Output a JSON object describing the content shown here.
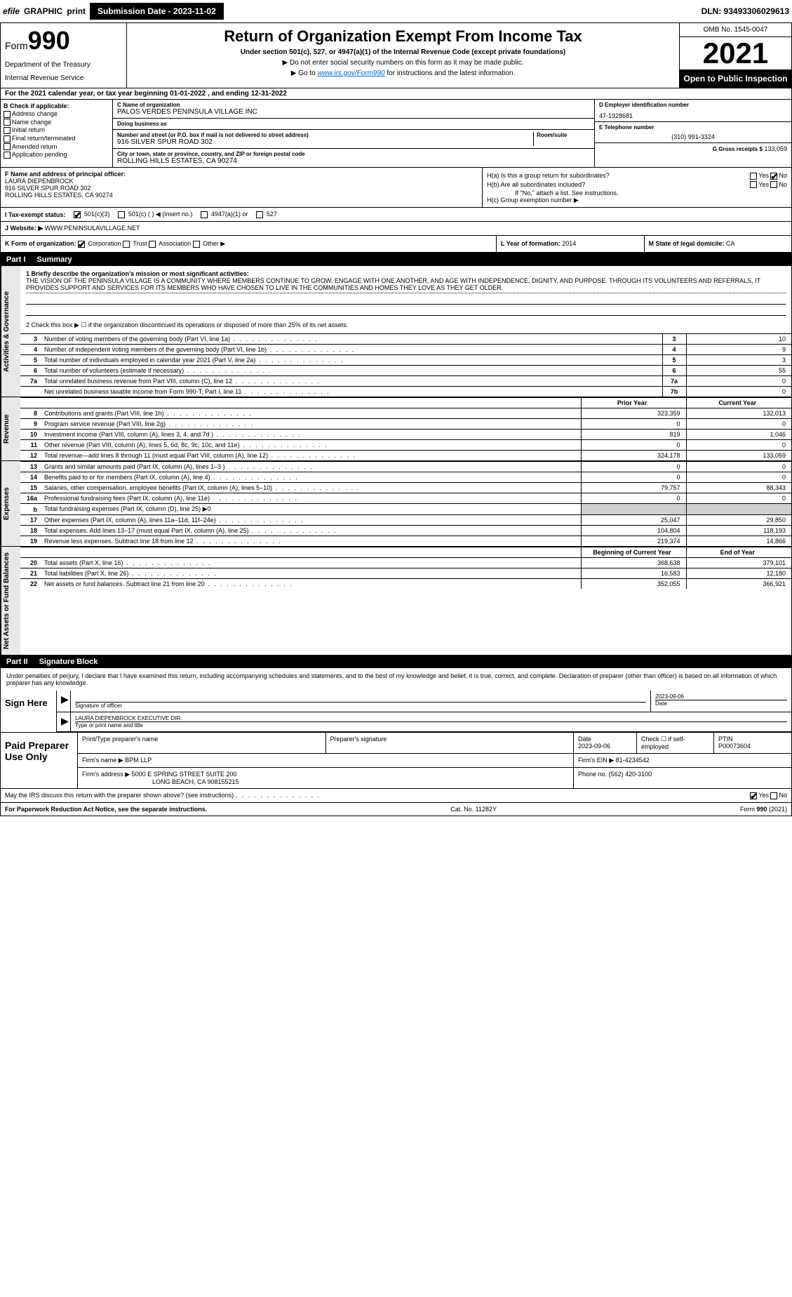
{
  "topbar": {
    "efile": "efile",
    "graphic": "GRAPHIC",
    "print": "print",
    "submission_label": "Submission Date - 2023-11-02",
    "dln": "DLN: 93493306029613"
  },
  "header": {
    "form_prefix": "Form",
    "form_number": "990",
    "dept": "Department of the Treasury",
    "irs": "Internal Revenue Service",
    "title": "Return of Organization Exempt From Income Tax",
    "subtitle": "Under section 501(c), 527, or 4947(a)(1) of the Internal Revenue Code (except private foundations)",
    "note1": "▶ Do not enter social security numbers on this form as it may be made public.",
    "note2_pre": "▶ Go to ",
    "note2_link": "www.irs.gov/Form990",
    "note2_post": " for instructions and the latest information.",
    "omb": "OMB No. 1545-0047",
    "year": "2021",
    "open_public": "Open to Public Inspection"
  },
  "period": "For the 2021 calendar year, or tax year beginning 01-01-2022    , and ending 12-31-2022",
  "box_b": {
    "title": "B Check if applicable:",
    "addr": "Address change",
    "name": "Name change",
    "initial": "Initial return",
    "final": "Final return/terminated",
    "amended": "Amended return",
    "app": "Application pending"
  },
  "box_c": {
    "name_label": "C Name of organization",
    "name": "PALOS VERDES PENINSULA VILLAGE INC",
    "dba_label": "Doing business as",
    "dba": "",
    "street_label": "Number and street (or P.O. box if mail is not delivered to street address)",
    "room_label": "Room/suite",
    "street": "916 SILVER SPUR ROAD 302",
    "city_label": "City or town, state or province, country, and ZIP or foreign postal code",
    "city": "ROLLING HILLS ESTATES, CA  90274"
  },
  "box_d": {
    "label": "D Employer identification number",
    "val": "47-1928681"
  },
  "box_e": {
    "label": "E Telephone number",
    "val": "(310) 991-3324"
  },
  "box_g": {
    "label": "G Gross receipts $",
    "val": "133,059"
  },
  "box_f": {
    "label": "F  Name and address of principal officer:",
    "name": "LAURA DIEPENBROCK",
    "street": "916 SILVER SPUR ROAD 302",
    "city": "ROLLING HILLS ESTATES, CA  90274"
  },
  "box_h": {
    "ha": "H(a)  Is this a group return for subordinates?",
    "hb": "H(b)  Are all subordinates included?",
    "hb_note": "If \"No,\" attach a list. See instructions.",
    "hc": "H(c)  Group exemption number ▶",
    "yes": "Yes",
    "no": "No"
  },
  "box_i": {
    "label": "I   Tax-exempt status:",
    "o1": "501(c)(3)",
    "o2": "501(c) (   ) ◀ (insert no.)",
    "o3": "4947(a)(1) or",
    "o4": "527"
  },
  "box_j": {
    "label": "J   Website: ▶",
    "val": "WWW.PENINSULAVILLAGE.NET"
  },
  "box_k": {
    "label": "K Form of organization:",
    "corp": "Corporation",
    "trust": "Trust",
    "assoc": "Association",
    "other": "Other ▶"
  },
  "box_l": {
    "label": "L Year of formation:",
    "val": "2014"
  },
  "box_m": {
    "label": "M State of legal domicile:",
    "val": "CA"
  },
  "part1": {
    "label": "Part I",
    "title": "Summary"
  },
  "summary": {
    "q1_label": "1  Briefly describe the organization's mission or most significant activities:",
    "q1_text": "THE VISION OF THE PENINSULA VILLAGE IS A COMMUNITY WHERE MEMBERS CONTINUE TO GROW, ENGAGE WITH ONE ANOTHER, AND AGE WITH INDEPENDENCE, DIGNITY, AND PURPOSE. THROUGH ITS VOLUNTEERS AND REFERRALS, IT PROVIDES SUPPORT AND SERVICES FOR ITS MEMBERS WHO HAVE CHOSEN TO LIVE IN THE COMMUNITIES AND HOMES THEY LOVE AS THEY GET OLDER.",
    "q2": "2   Check this box ▶ ☐  if the organization discontinued its operations or disposed of more than 25% of its net assets.",
    "lines": [
      {
        "n": "3",
        "desc": "Number of voting members of the governing body (Part VI, line 1a)",
        "box": "3",
        "v": "10"
      },
      {
        "n": "4",
        "desc": "Number of independent voting members of the governing body (Part VI, line 1b)",
        "box": "4",
        "v": "9"
      },
      {
        "n": "5",
        "desc": "Total number of individuals employed in calendar year 2021 (Part V, line 2a)",
        "box": "5",
        "v": "3"
      },
      {
        "n": "6",
        "desc": "Total number of volunteers (estimate if necessary)",
        "box": "6",
        "v": "55"
      },
      {
        "n": "7a",
        "desc": "Total unrelated business revenue from Part VIII, column (C), line 12",
        "box": "7a",
        "v": "0"
      },
      {
        "n": "",
        "desc": "Net unrelated business taxable income from Form 990-T, Part I, line 11",
        "box": "7b",
        "v": "0"
      }
    ]
  },
  "revenue": {
    "tab": "Revenue",
    "hdr_prior": "Prior Year",
    "hdr_current": "Current Year",
    "rows": [
      {
        "n": "8",
        "desc": "Contributions and grants (Part VIII, line 1h)",
        "p": "323,359",
        "c": "132,013"
      },
      {
        "n": "9",
        "desc": "Program service revenue (Part VIII, line 2g)",
        "p": "0",
        "c": "0"
      },
      {
        "n": "10",
        "desc": "Investment income (Part VIII, column (A), lines 3, 4, and 7d )",
        "p": "819",
        "c": "1,046"
      },
      {
        "n": "11",
        "desc": "Other revenue (Part VIII, column (A), lines 5, 6d, 8c, 9c, 10c, and 11e)",
        "p": "0",
        "c": "0"
      },
      {
        "n": "12",
        "desc": "Total revenue—add lines 8 through 11 (must equal Part VIII, column (A), line 12)",
        "p": "324,178",
        "c": "133,059"
      }
    ]
  },
  "expenses": {
    "tab": "Expenses",
    "rows": [
      {
        "n": "13",
        "desc": "Grants and similar amounts paid (Part IX, column (A), lines 1–3 )",
        "p": "0",
        "c": "0"
      },
      {
        "n": "14",
        "desc": "Benefits paid to or for members (Part IX, column (A), line 4)",
        "p": "0",
        "c": "0"
      },
      {
        "n": "15",
        "desc": "Salaries, other compensation, employee benefits (Part IX, column (A), lines 5–10)",
        "p": "79,757",
        "c": "88,343"
      },
      {
        "n": "16a",
        "desc": "Professional fundraising fees (Part IX, column (A), line 11e)",
        "p": "0",
        "c": "0"
      },
      {
        "n": "b",
        "desc": "Total fundraising expenses (Part IX, column (D), line 25) ▶0",
        "p": "",
        "c": "",
        "shaded": true
      },
      {
        "n": "17",
        "desc": "Other expenses (Part IX, column (A), lines 11a–11d, 11f–24e)",
        "p": "25,047",
        "c": "29,850"
      },
      {
        "n": "18",
        "desc": "Total expenses. Add lines 13–17 (must equal Part IX, column (A), line 25)",
        "p": "104,804",
        "c": "118,193"
      },
      {
        "n": "19",
        "desc": "Revenue less expenses. Subtract line 18 from line 12",
        "p": "219,374",
        "c": "14,866"
      }
    ]
  },
  "netassets": {
    "tab": "Net Assets or Fund Balances",
    "hdr_begin": "Beginning of Current Year",
    "hdr_end": "End of Year",
    "rows": [
      {
        "n": "20",
        "desc": "Total assets (Part X, line 16)",
        "p": "368,638",
        "c": "379,101"
      },
      {
        "n": "21",
        "desc": "Total liabilities (Part X, line 26)",
        "p": "16,583",
        "c": "12,180"
      },
      {
        "n": "22",
        "desc": "Net assets or fund balances. Subtract line 21 from line 20",
        "p": "352,055",
        "c": "366,921"
      }
    ]
  },
  "part2": {
    "label": "Part II",
    "title": "Signature Block"
  },
  "sig": {
    "declaration": "Under penalties of perjury, I declare that I have examined this return, including accompanying schedules and statements, and to the best of my knowledge and belief, it is true, correct, and complete. Declaration of preparer (other than officer) is based on all information of which preparer has any knowledge.",
    "sign_here": "Sign Here",
    "sig_officer": "Signature of officer",
    "date_label": "Date",
    "date": "2023-09-06",
    "name": "LAURA DIEPENBROCK  EXECUTIVE DIR.",
    "name_label": "Type or print name and title"
  },
  "paid": {
    "title": "Paid Preparer Use Only",
    "h_name": "Print/Type preparer's name",
    "h_sig": "Preparer's signature",
    "h_date": "Date",
    "h_date_val": "2023-09-06",
    "h_check": "Check ☐ if self-employed",
    "h_ptin": "PTIN",
    "ptin": "P00073604",
    "firm_name_label": "Firm's name    ▶",
    "firm_name": "BPM LLP",
    "firm_ein_label": "Firm's EIN ▶",
    "firm_ein": "81-4234542",
    "firm_addr_label": "Firm's address ▶",
    "firm_addr1": "5000 E SPRING STREET SUITE 200",
    "firm_addr2": "LONG BEACH, CA  908155215",
    "phone_label": "Phone no.",
    "phone": "(562) 420-3100"
  },
  "discuss": {
    "q": "May the IRS discuss this return with the preparer shown above? (see instructions)",
    "yes": "Yes",
    "no": "No"
  },
  "footer": {
    "left": "For Paperwork Reduction Act Notice, see the separate instructions.",
    "mid": "Cat. No. 11282Y",
    "right": "Form 990 (2021)"
  },
  "colors": {
    "black": "#000000",
    "link": "#0066cc",
    "shade": "#d0d0d0",
    "tabbg": "#e8e8e8"
  }
}
